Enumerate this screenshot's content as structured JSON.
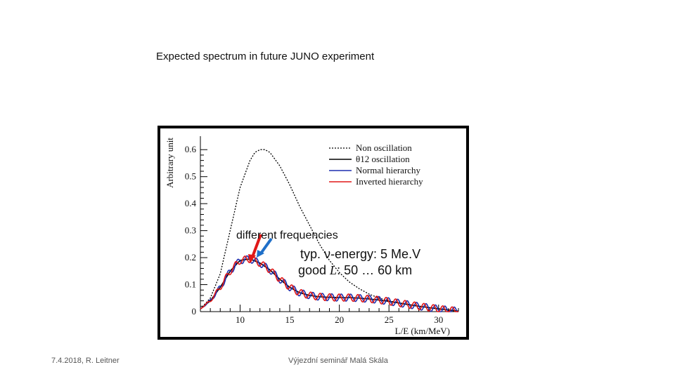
{
  "slide": {
    "title": "Expected spectrum in future JUNO experiment",
    "footer_left": "7.4.2018, R. Leitner",
    "footer_center": "Výjezdní seminář Malá Skála"
  },
  "chart_data": {
    "type": "line",
    "title": "Expected spectrum in future JUNO experiment",
    "xlabel": "L/E (km/MeV)",
    "ylabel": "Arbitrary unit",
    "xlim": [
      6,
      32
    ],
    "ylim": [
      0,
      0.65
    ],
    "xticks": [
      "10",
      "15",
      "20",
      "25",
      "30"
    ],
    "yticks": [
      "0",
      "0.1",
      "0.2",
      "0.3",
      "0.4",
      "0.5",
      "0.6"
    ],
    "legend": [
      "Non oscillation",
      "θ12 oscillation",
      "Normal hierarchy",
      "Inverted hierarchy"
    ],
    "legend_position": "top-right",
    "series": [
      {
        "name": "Non oscillation",
        "color": "#000000",
        "style": "dotted",
        "x": [
          6,
          7,
          8,
          9,
          10,
          11,
          11.5,
          12,
          12.5,
          13,
          14,
          15,
          16,
          17,
          18,
          19,
          20,
          21,
          22,
          23,
          24,
          25,
          26,
          27,
          28,
          29,
          30,
          31,
          32
        ],
        "y": [
          0.01,
          0.05,
          0.14,
          0.3,
          0.46,
          0.56,
          0.59,
          0.6,
          0.6,
          0.59,
          0.54,
          0.47,
          0.39,
          0.32,
          0.25,
          0.19,
          0.145,
          0.11,
          0.085,
          0.065,
          0.05,
          0.04,
          0.032,
          0.025,
          0.02,
          0.015,
          0.011,
          0.006,
          0.001
        ]
      },
      {
        "name": "θ12 oscillation",
        "color": "#000000",
        "style": "solid",
        "x": [
          6,
          7,
          8,
          9,
          10,
          11,
          12,
          13,
          14,
          15,
          16,
          17,
          18,
          19,
          20,
          21,
          22,
          23,
          24,
          25,
          26,
          27,
          28,
          29,
          30,
          31,
          32
        ],
        "y": [
          0.01,
          0.04,
          0.09,
          0.15,
          0.19,
          0.195,
          0.18,
          0.155,
          0.12,
          0.09,
          0.07,
          0.06,
          0.055,
          0.053,
          0.052,
          0.052,
          0.05,
          0.047,
          0.043,
          0.038,
          0.032,
          0.026,
          0.02,
          0.015,
          0.01,
          0.006,
          0.002
        ]
      },
      {
        "name": "Normal hierarchy",
        "color": "#1f2fb0",
        "style": "solid",
        "oscillation_amplitude": 0.013,
        "oscillation_period": 0.95,
        "oscillation_phase": 0,
        "x": [
          6,
          7,
          8,
          9,
          10,
          11,
          12,
          13,
          14,
          15,
          16,
          17,
          18,
          19,
          20,
          21,
          22,
          23,
          24,
          25,
          26,
          27,
          28,
          29,
          30,
          31,
          32
        ],
        "y": [
          0.01,
          0.04,
          0.09,
          0.15,
          0.19,
          0.195,
          0.18,
          0.155,
          0.12,
          0.09,
          0.07,
          0.06,
          0.055,
          0.053,
          0.052,
          0.052,
          0.05,
          0.047,
          0.043,
          0.038,
          0.032,
          0.026,
          0.02,
          0.015,
          0.01,
          0.006,
          0.002
        ]
      },
      {
        "name": "Inverted hierarchy",
        "color": "#e01818",
        "style": "solid",
        "oscillation_amplitude": 0.013,
        "oscillation_period": 0.95,
        "oscillation_phase": 1.4,
        "x": [
          6,
          7,
          8,
          9,
          10,
          11,
          12,
          13,
          14,
          15,
          16,
          17,
          18,
          19,
          20,
          21,
          22,
          23,
          24,
          25,
          26,
          27,
          28,
          29,
          30,
          31,
          32
        ],
        "y": [
          0.01,
          0.04,
          0.09,
          0.15,
          0.19,
          0.195,
          0.18,
          0.155,
          0.12,
          0.09,
          0.07,
          0.06,
          0.055,
          0.053,
          0.052,
          0.052,
          0.05,
          0.047,
          0.043,
          0.038,
          0.032,
          0.026,
          0.02,
          0.015,
          0.01,
          0.006,
          0.002
        ]
      }
    ],
    "annotations": {
      "frequencies": "different frequencies",
      "energy": "typ. ν-energy: 5 Me.V",
      "distance_prefix": "good ",
      "distance_symbol": "L",
      "distance_suffix": ": 50 … 60 km"
    },
    "arrow_colors": {
      "red": "#e01818",
      "blue": "#1f6fc8"
    }
  }
}
